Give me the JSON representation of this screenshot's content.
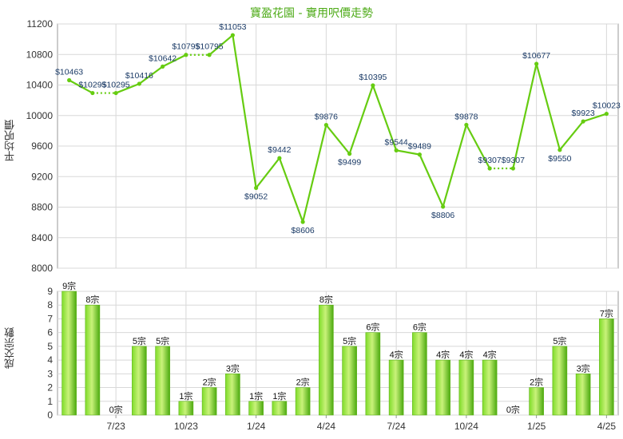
{
  "chart_data": [
    {
      "type": "line",
      "title": "寶盈花園 - 實用呎價走勢",
      "ylabel": "平均呎價",
      "ylim": [
        8000,
        11200
      ],
      "yticks": [
        8000,
        8400,
        8800,
        9200,
        9600,
        10000,
        10400,
        10800,
        11200
      ],
      "grid": true,
      "color": "#66cc11",
      "value_prefix": "$",
      "values": [
        10463,
        10295,
        10295,
        10416,
        10642,
        10795,
        10795,
        11053,
        9052,
        9442,
        8606,
        9876,
        9499,
        10395,
        9544,
        9489,
        8806,
        9878,
        9307,
        9307,
        10677,
        9550,
        9923,
        10023
      ],
      "show_label": [
        true,
        true,
        true,
        true,
        true,
        true,
        true,
        true,
        true,
        true,
        true,
        true,
        true,
        true,
        true,
        true,
        true,
        true,
        true,
        true,
        true,
        true,
        true,
        true
      ]
    },
    {
      "type": "bar",
      "ylabel": "成交宗數",
      "ylim": [
        0,
        9
      ],
      "yticks": [
        0,
        1,
        2,
        3,
        4,
        5,
        6,
        7,
        8,
        9
      ],
      "grid": true,
      "color": "#66cc11",
      "value_suffix": "宗",
      "values": [
        9,
        8,
        0,
        5,
        5,
        1,
        2,
        3,
        1,
        1,
        2,
        8,
        5,
        6,
        4,
        6,
        4,
        4,
        4,
        0,
        2,
        5,
        3,
        7
      ],
      "x_tick_labels": [
        {
          "index": 2,
          "label": "7/23"
        },
        {
          "index": 5,
          "label": "10/23"
        },
        {
          "index": 8,
          "label": "1/24"
        },
        {
          "index": 11,
          "label": "4/24"
        },
        {
          "index": 14,
          "label": "7/24"
        },
        {
          "index": 17,
          "label": "10/24"
        },
        {
          "index": 20,
          "label": "1/25"
        },
        {
          "index": 23,
          "label": "4/25"
        }
      ]
    }
  ]
}
